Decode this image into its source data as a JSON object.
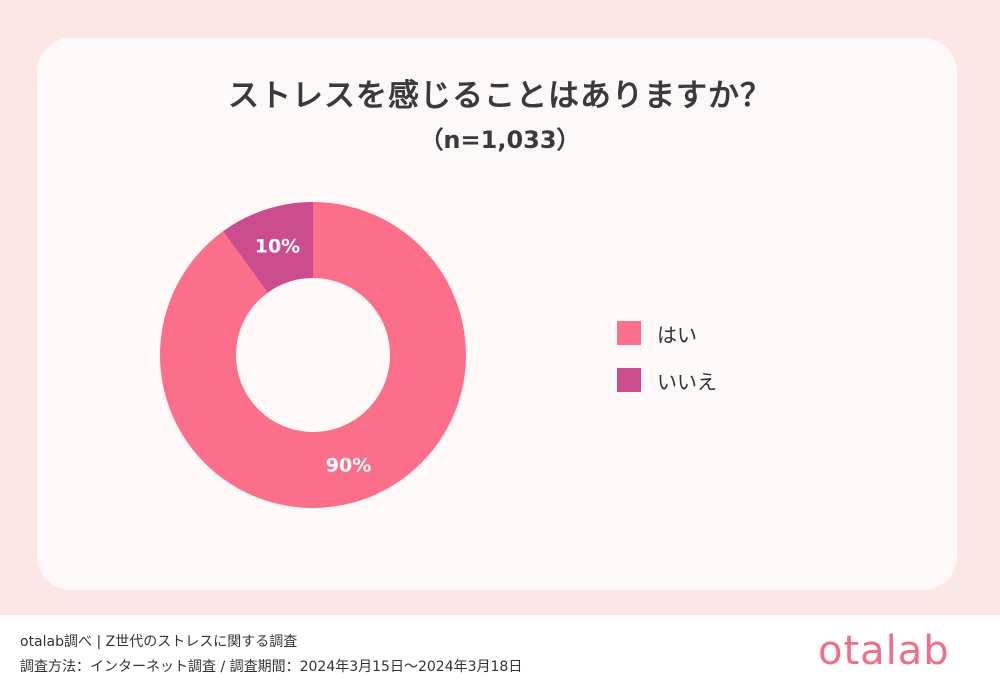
{
  "chart_data": {
    "type": "pie",
    "title": "ストレスを感じることはありますか？",
    "subtitle": "（n=1,033）",
    "categories": [
      "はい",
      "いいえ"
    ],
    "values": [
      90,
      10
    ],
    "labels": [
      "90%",
      "10%"
    ],
    "colors": [
      "#fc6f8b",
      "#cc4d8f"
    ],
    "legend_position": "right"
  },
  "footer": {
    "source": "otalab調べ | Z世代のストレスに関する調査",
    "method": "調査方法：インターネット調査 / 調査期間：2024年3月15日〜2024年3月18日"
  },
  "logo": "otalab"
}
